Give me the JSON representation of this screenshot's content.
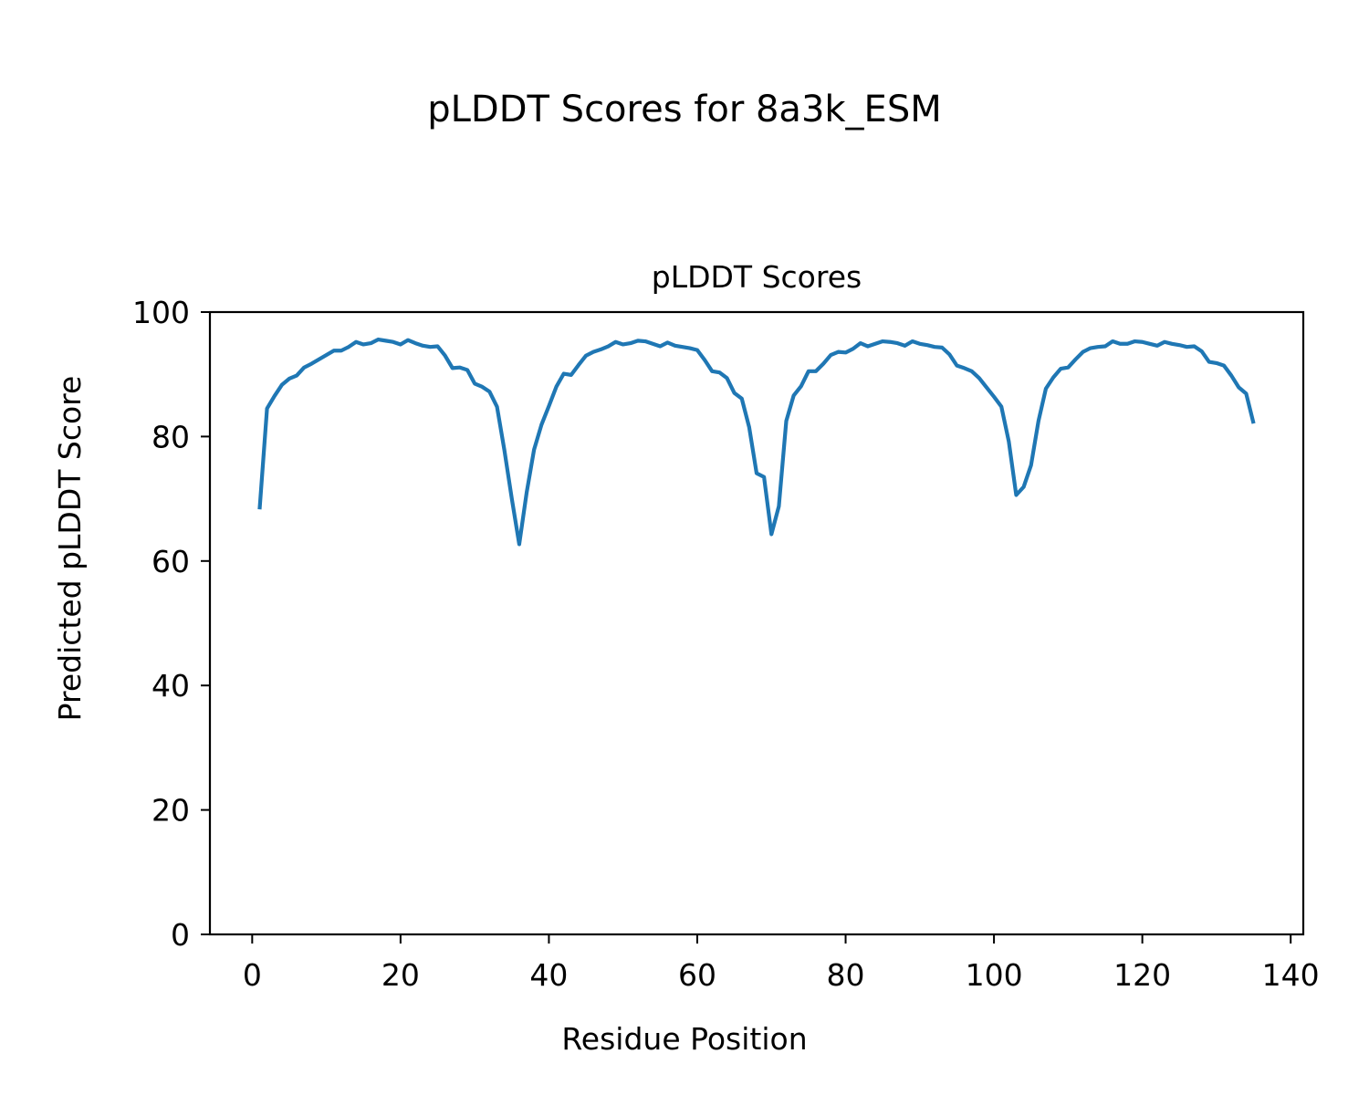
{
  "figure": {
    "suptitle": "pLDDT Scores for 8a3k_ESM"
  },
  "chart_data": {
    "type": "line",
    "title": "pLDDT Scores",
    "xlabel": "Residue Position",
    "ylabel": "Predicted pLDDT Score",
    "xlim": [
      -5.7,
      141.7
    ],
    "ylim": [
      0,
      100
    ],
    "xticks": [
      0,
      20,
      40,
      60,
      80,
      100,
      120,
      140
    ],
    "yticks": [
      0,
      20,
      40,
      60,
      80,
      100
    ],
    "grid": false,
    "line_color": "#1f77b4",
    "series": [
      {
        "x": [
          1,
          2,
          3,
          4,
          5,
          6,
          7,
          8,
          9,
          10,
          11,
          12,
          13,
          14,
          15,
          16,
          17,
          18,
          19,
          20,
          21,
          22,
          23,
          24,
          25,
          26,
          27,
          28,
          29,
          30,
          31,
          32,
          33,
          34,
          35,
          36,
          37,
          38,
          39,
          40,
          41,
          42,
          43,
          44,
          45,
          46,
          47,
          48,
          49,
          50,
          51,
          52,
          53,
          54,
          55,
          56,
          57,
          58,
          59,
          60,
          61,
          62,
          63,
          64,
          65,
          66,
          67,
          68,
          69,
          70,
          71,
          72,
          73,
          74,
          75,
          76,
          77,
          78,
          79,
          80,
          81,
          82,
          83,
          84,
          85,
          86,
          87,
          88,
          89,
          90,
          91,
          92,
          93,
          94,
          95,
          96,
          97,
          98,
          99,
          100,
          101,
          102,
          103,
          104,
          105,
          106,
          107,
          108,
          109,
          110,
          111,
          112,
          113,
          114,
          115,
          116,
          117,
          118,
          119,
          120,
          121,
          122,
          123,
          124,
          125,
          126,
          127,
          128,
          129,
          130,
          131,
          132,
          133,
          134,
          135
        ],
        "y": [
          68.3,
          84.5,
          86.5,
          88.3,
          89.3,
          89.8,
          91.1,
          91.7,
          92.4,
          93.1,
          93.8,
          93.8,
          94.4,
          95.2,
          94.8,
          95.0,
          95.6,
          95.4,
          95.2,
          94.8,
          95.5,
          95.0,
          94.6,
          94.4,
          94.5,
          93.0,
          91.0,
          91.1,
          90.7,
          88.5,
          88.0,
          87.2,
          84.8,
          77.8,
          70.0,
          62.7,
          71.0,
          77.9,
          81.9,
          84.9,
          88.0,
          90.1,
          89.9,
          91.5,
          93.0,
          93.6,
          94.0,
          94.5,
          95.2,
          94.8,
          95.0,
          95.4,
          95.3,
          94.9,
          94.5,
          95.1,
          94.6,
          94.4,
          94.2,
          93.9,
          92.3,
          90.5,
          90.3,
          89.4,
          87.0,
          86.1,
          81.5,
          74.1,
          73.5,
          64.3,
          68.8,
          82.5,
          86.6,
          88.1,
          90.5,
          90.5,
          91.7,
          93.1,
          93.6,
          93.5,
          94.1,
          95.0,
          94.5,
          94.9,
          95.3,
          95.2,
          95.0,
          94.6,
          95.3,
          94.9,
          94.7,
          94.4,
          94.3,
          93.2,
          91.4,
          91.0,
          90.5,
          89.4,
          87.9,
          86.4,
          84.8,
          79.2,
          70.6,
          71.9,
          75.4,
          82.5,
          87.7,
          89.5,
          90.9,
          91.1,
          92.4,
          93.6,
          94.2,
          94.4,
          94.5,
          95.3,
          94.9,
          94.9,
          95.3,
          95.2,
          94.9,
          94.6,
          95.2,
          94.9,
          94.7,
          94.4,
          94.5,
          93.7,
          92.0,
          91.8,
          91.4,
          89.8,
          87.9,
          86.9,
          82.1
        ]
      }
    ]
  }
}
